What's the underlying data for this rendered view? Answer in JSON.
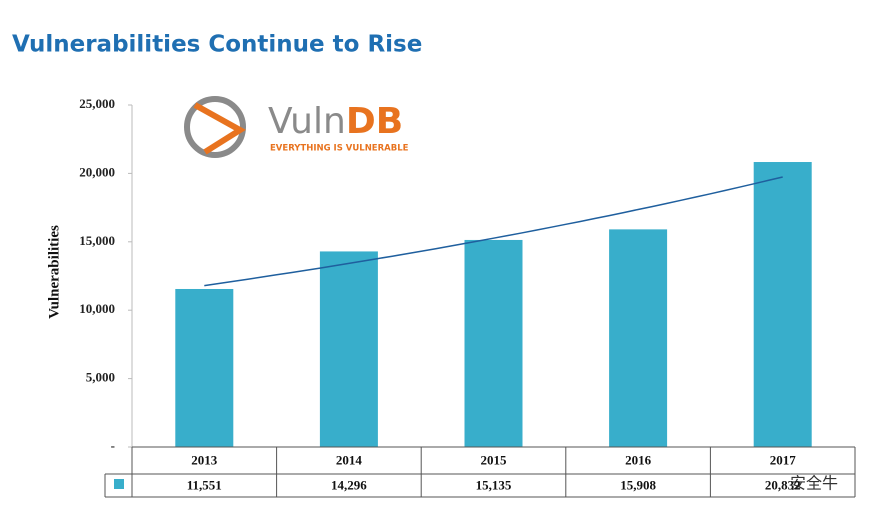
{
  "chart_data": {
    "type": "bar",
    "title": "Vulnerabilities Continue to Rise",
    "y_label": "Vulnerabilities",
    "categories": [
      "2013",
      "2014",
      "2015",
      "2016",
      "2017"
    ],
    "values": [
      11551,
      14296,
      15135,
      15908,
      20832
    ],
    "value_labels": [
      "11,551",
      "14,296",
      "15,135",
      "15,908",
      "20,832"
    ],
    "color": "#38aecb",
    "trendline": "exponential",
    "trendline_color": "#1f5f9e",
    "ylim": [
      0,
      25000
    ],
    "yticks": [
      {
        "value": 0,
        "label": "-"
      },
      {
        "value": 5000,
        "label": "5,000"
      },
      {
        "value": 10000,
        "label": "10,000"
      },
      {
        "value": 15000,
        "label": "15,000"
      },
      {
        "value": 20000,
        "label": "20,000"
      },
      {
        "value": 25000,
        "label": "25,000"
      }
    ]
  },
  "logo": {
    "name_parts": [
      "Vuln",
      "DB"
    ],
    "tagline": "EVERYTHING IS VULNERABLE"
  },
  "watermark": "安全牛"
}
